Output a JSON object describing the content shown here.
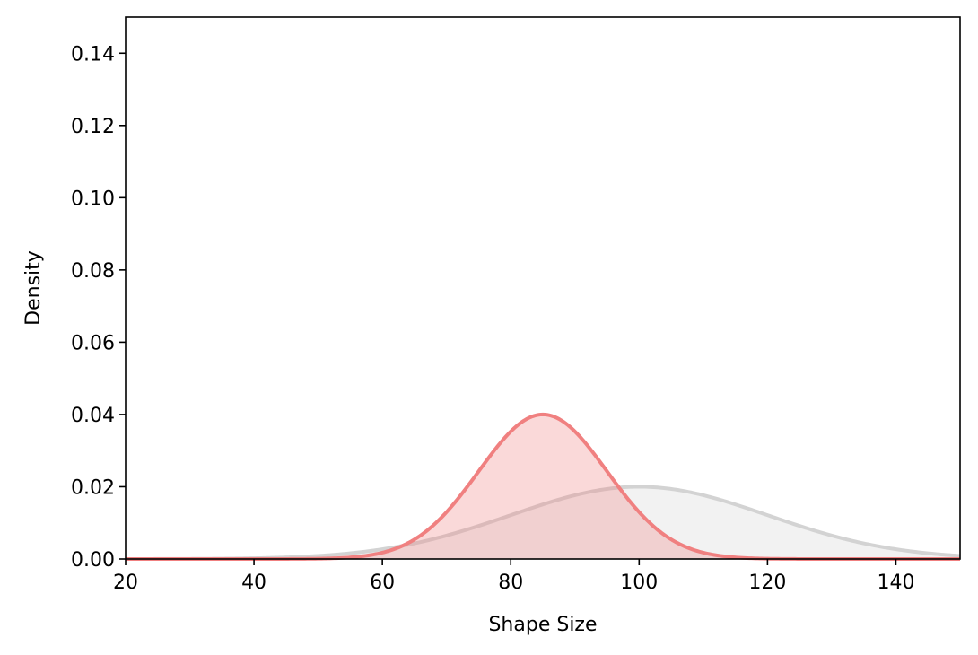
{
  "chart_data": {
    "type": "area",
    "title": "",
    "xlabel": "Shape Size",
    "ylabel": "Density",
    "xlim": [
      20,
      150
    ],
    "ylim": [
      0,
      0.15
    ],
    "x_ticks": [
      20,
      40,
      60,
      80,
      100,
      120,
      140
    ],
    "y_ticks": [
      0.0,
      0.02,
      0.04,
      0.06,
      0.08,
      0.1,
      0.12,
      0.14
    ],
    "x_tick_labels": [
      "20",
      "40",
      "60",
      "80",
      "100",
      "120",
      "140"
    ],
    "y_tick_labels": [
      "0.00",
      "0.02",
      "0.04",
      "0.06",
      "0.08",
      "0.10",
      "0.12",
      "0.14"
    ],
    "grid": false,
    "legend": "none",
    "series": [
      {
        "distribution": "normal",
        "mean": 100,
        "sd": 20,
        "peak_density": 0.02,
        "line_color": "#d3d3d3",
        "fill_color": "#d3d3d3",
        "fill_opacity": 0.3
      },
      {
        "distribution": "normal",
        "mean": 85,
        "sd": 10,
        "peak_density": 0.04,
        "line_color": "#f08080",
        "fill_color": "#f08080",
        "fill_opacity": 0.3
      }
    ]
  }
}
